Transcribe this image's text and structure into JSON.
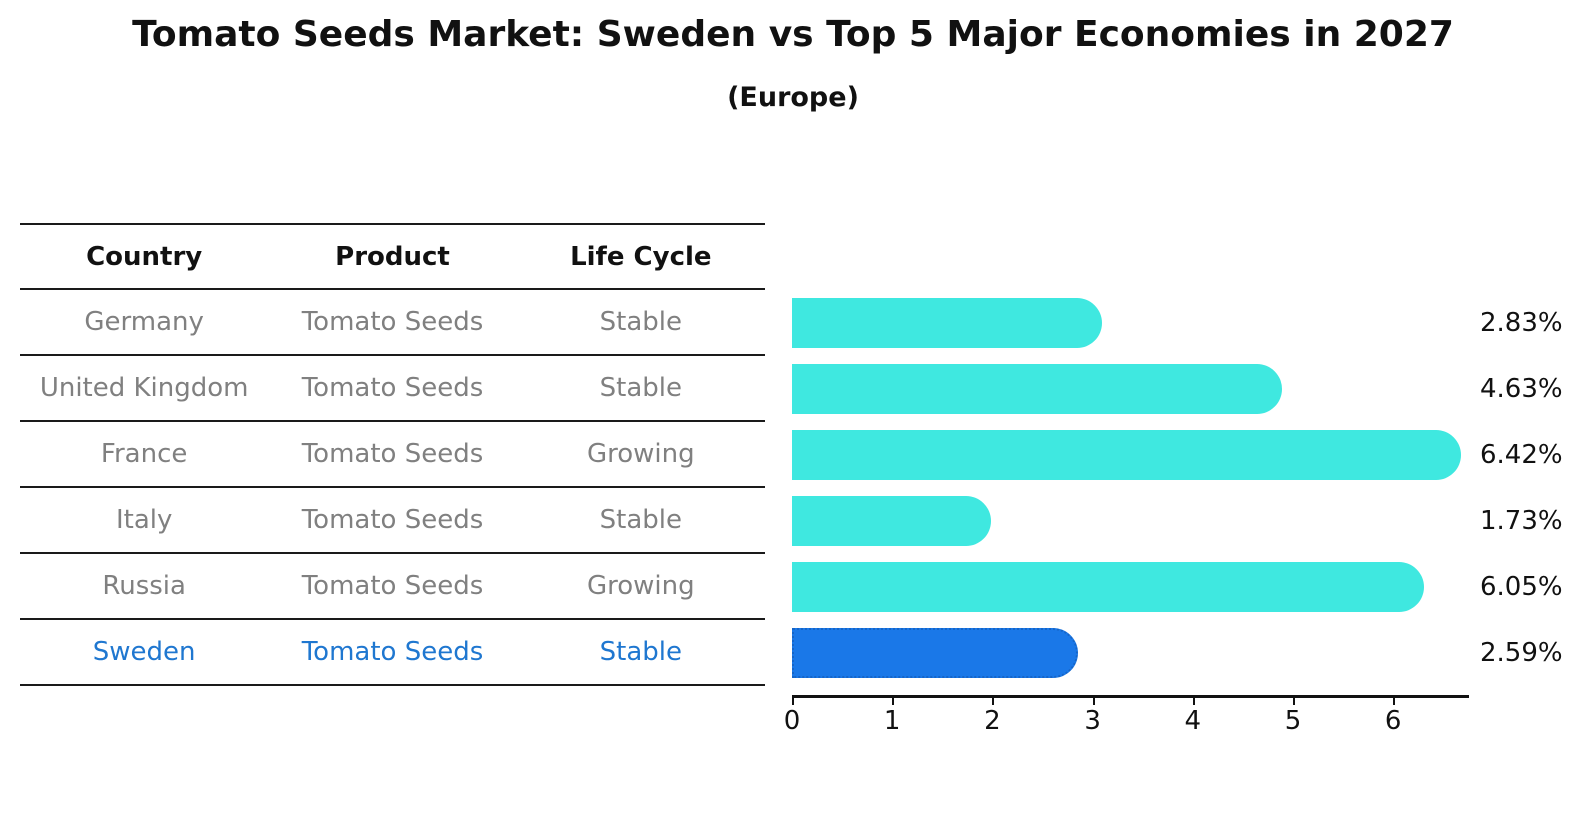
{
  "chart_title": "Tomato Seeds Market: Sweden vs Top 5 Major Economies in 2027",
  "chart_subtitle": "(Europe)",
  "table": {
    "headers": [
      "Country",
      "Product",
      "Life Cycle"
    ],
    "rows": [
      {
        "country": "Germany",
        "product": "Tomato Seeds",
        "life_cycle": "Stable",
        "highlight": false
      },
      {
        "country": "United Kingdom",
        "product": "Tomato Seeds",
        "life_cycle": "Stable",
        "highlight": false
      },
      {
        "country": "France",
        "product": "Tomato Seeds",
        "life_cycle": "Growing",
        "highlight": false
      },
      {
        "country": "Italy",
        "product": "Tomato Seeds",
        "life_cycle": "Stable",
        "highlight": false
      },
      {
        "country": "Russia",
        "product": "Tomato Seeds",
        "life_cycle": "Growing",
        "highlight": false
      },
      {
        "country": "Sweden",
        "product": "Tomato Seeds",
        "life_cycle": "Stable",
        "highlight": true
      }
    ],
    "text_color": "#808080",
    "highlight_text_color": "#1f77d0"
  },
  "chart_data": {
    "type": "bar",
    "orientation": "horizontal",
    "title": "Tomato Seeds Market: Sweden vs Top 5 Major Economies in 2027",
    "subtitle": "(Europe)",
    "categories": [
      "Germany",
      "United Kingdom",
      "France",
      "Italy",
      "Russia",
      "Sweden"
    ],
    "values": [
      2.83,
      4.63,
      6.42,
      1.73,
      6.05,
      2.59
    ],
    "value_labels": [
      "2.83%",
      "4.63%",
      "6.42%",
      "1.73%",
      "6.05%",
      "2.59%"
    ],
    "unit": "%",
    "xlabel": "",
    "ylabel": "",
    "xlim": [
      0,
      6.75
    ],
    "xticks": [
      0,
      1,
      2,
      3,
      4,
      5,
      6
    ],
    "grid": false,
    "legend": false,
    "bar_color": "#3fe8e0",
    "highlight_index": 5,
    "highlight_color": "#1a78e8",
    "highlight_border_color": "#1565c8"
  }
}
